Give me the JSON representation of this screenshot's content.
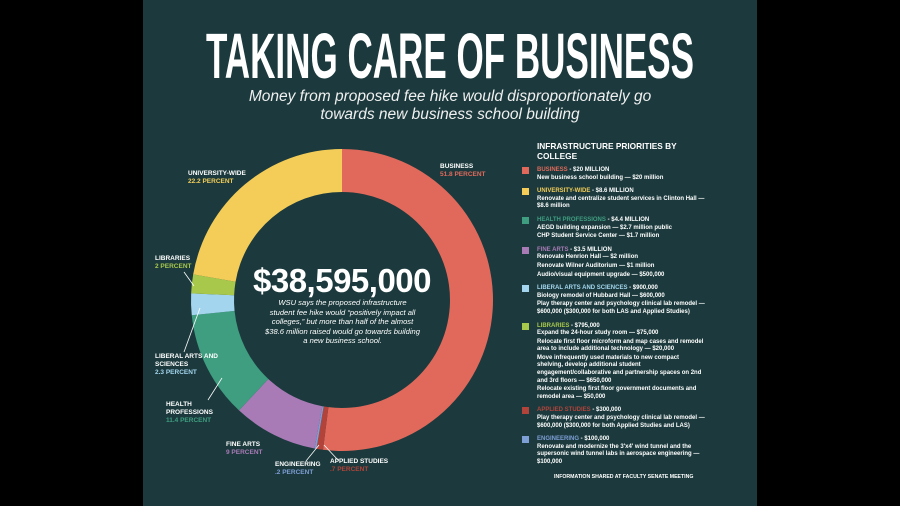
{
  "header": {
    "title": "TAKING CARE OF BUSINESS",
    "subtitle": "Money from proposed fee hike would disproportionately go towards new business school building"
  },
  "chart_data": {
    "type": "donut",
    "total_label": "$38,595,000",
    "center_text": "WSU says the proposed infrastructure student fee hike would “positively impact all colleges,” but more than half of the almost $38.6 million raised would go towards building a new business school.",
    "categories": [
      "BUSINESS",
      "APPLIED STUDIES",
      "ENGINEERING",
      "FINE ARTS",
      "HEALTH PROFESSIONS",
      "LIBERAL ARTS AND SCIENCES",
      "LIBRARIES",
      "UNIVERSITY-WIDE"
    ],
    "values": [
      51.8,
      0.7,
      0.2,
      9,
      11.4,
      2.3,
      2,
      22.2
    ],
    "value_labels": [
      "51.8 PERCENT",
      ".7 PERCENT",
      ".2 PERCENT",
      "9 PERCENT",
      "11.4 PERCENT",
      "2.3 PERCENT",
      "2 PERCENT",
      "22.2 PERCENT"
    ],
    "colors": [
      "#e1695b",
      "#b2433a",
      "#7e9ed6",
      "#a97bb6",
      "#3f9d80",
      "#a3d6ee",
      "#a8c84c",
      "#f3cd58"
    ]
  },
  "priorities": {
    "title": "INFRASTRUCTURE PRIORITIES BY COLLEGE",
    "items": [
      {
        "college": "BUSINESS",
        "amount": " - $20 MILLION",
        "color": "#e1695b",
        "details": [
          "New business school building — $20 million"
        ]
      },
      {
        "college": "UNIVERSITY-WIDE",
        "amount": " - $8.6 MILLION",
        "color": "#f3cd58",
        "details": [
          "Renovate and centralize student services in Clinton Hall — $8.6 million"
        ]
      },
      {
        "college": "HEALTH PROFESSIONS",
        "amount": " - $4.4 MILLION",
        "color": "#3f9d80",
        "details": [
          "AEGD building expansion — $2.7 million public",
          "CHP Student Service Center — $1.7 million"
        ]
      },
      {
        "college": "FINE ARTS",
        "amount": " - $3.5 MILLION",
        "color": "#a97bb6",
        "details": [
          "Renovate Henrion Hall — $2 million",
          "Renovate Wilner Auditorium — $1 million",
          "Audio/visual equipment upgrade — $500,000"
        ]
      },
      {
        "college": "LIBERAL ARTS AND SCIENCES",
        "amount": " - $900,000",
        "color": "#a3d6ee",
        "details": [
          "Biology remodel of Hubbard Hall — $600,000",
          "Play therapy center and psychology clinical lab remodel — $600,000 ($300,000 for both LAS and Applied Studies)"
        ]
      },
      {
        "college": "LIBRARIES",
        "amount": " - $795,000",
        "color": "#a8c84c",
        "details": [
          "Expand the 24-hour study room — $75,000",
          "Relocate first floor microform and map cases and remodel area to include additional technology — $20,000",
          "Move infrequently used materials to new compact shelving, develop additional student engagement/collaborative and partnership spaces on 2nd and 3rd floors — $650,000",
          "Relocate existing first floor government documents and remodel area — $50,000"
        ]
      },
      {
        "college": "APPLIED STUDIES",
        "amount": " - $300,000",
        "color": "#b2433a",
        "details": [
          "Play therapy center and psychology clinical lab remodel — $600,000 ($300,000 for both Applied Studies and LAS)"
        ]
      },
      {
        "college": "ENGINEERING",
        "amount": " - $100,000",
        "color": "#7e9ed6",
        "details": [
          "Renovate and modernize the 3'x4' wind tunnel and the supersonic wind tunnel labs in aerospace engineering — $100,000"
        ]
      }
    ]
  },
  "footer": "INFORMATION SHARED AT FACULTY SENATE MEETING"
}
